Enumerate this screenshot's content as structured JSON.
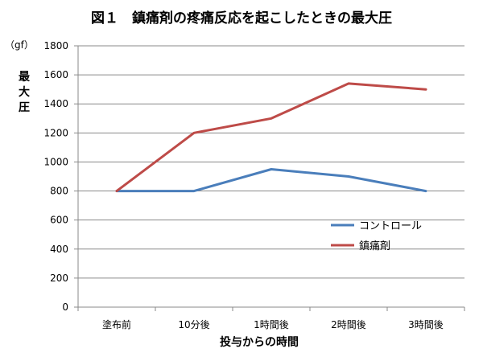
{
  "chart_data": {
    "type": "line",
    "title": "図１　鎮痛剤の疼痛反応を起こしたときの最大圧",
    "unit": "（gf）",
    "ylabel_chars": [
      "最",
      "大",
      "圧"
    ],
    "xlabel": "投与からの時間",
    "categories": [
      "塗布前",
      "10分後",
      "1時間後",
      "2時間後",
      "3時間後"
    ],
    "ylim": [
      0,
      1800
    ],
    "yticks": [
      0,
      200,
      400,
      600,
      800,
      1000,
      1200,
      1400,
      1600,
      1800
    ],
    "grid": true,
    "legend_position": "right",
    "series": [
      {
        "name": "コントロール",
        "color": "#4a7ebb",
        "values": [
          800,
          800,
          950,
          900,
          800
        ]
      },
      {
        "name": "鎮痛剤",
        "color": "#be4b48",
        "values": [
          800,
          1200,
          1300,
          1540,
          1500
        ]
      }
    ]
  }
}
